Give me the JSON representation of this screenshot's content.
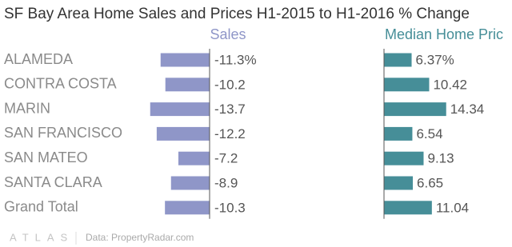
{
  "chart_data": {
    "type": "bar",
    "orientation": "horizontal",
    "title": "SF Bay Area Home Sales and Prices H1-2015 to H1-2016 % Change",
    "categories": [
      "ALAMEDA",
      "CONTRA COSTA",
      "MARIN",
      "SAN FRANCISCO",
      "SAN MATEO",
      "SANTA CLARA",
      "Grand Total"
    ],
    "series": [
      {
        "name": "Sales",
        "color": "#8f96c8",
        "values": [
          -11.3,
          -10.2,
          -13.7,
          -12.2,
          -7.2,
          -8.9,
          -10.3
        ],
        "value_labels": [
          "-11.3%",
          "-10.2",
          "-13.7",
          "-12.2",
          "-7.2",
          "-8.9",
          "-10.3"
        ]
      },
      {
        "name": "Median Home Pric",
        "color": "#468e98",
        "values": [
          6.37,
          10.42,
          14.34,
          6.54,
          9.13,
          6.65,
          11.04
        ],
        "value_labels": [
          "6.37%",
          "10.42",
          "14.34",
          "6.54",
          "9.13",
          "6.65",
          "11.04"
        ]
      }
    ]
  },
  "footer": {
    "logo": "ATLAS",
    "source": "Data: PropertyRadar.com"
  }
}
